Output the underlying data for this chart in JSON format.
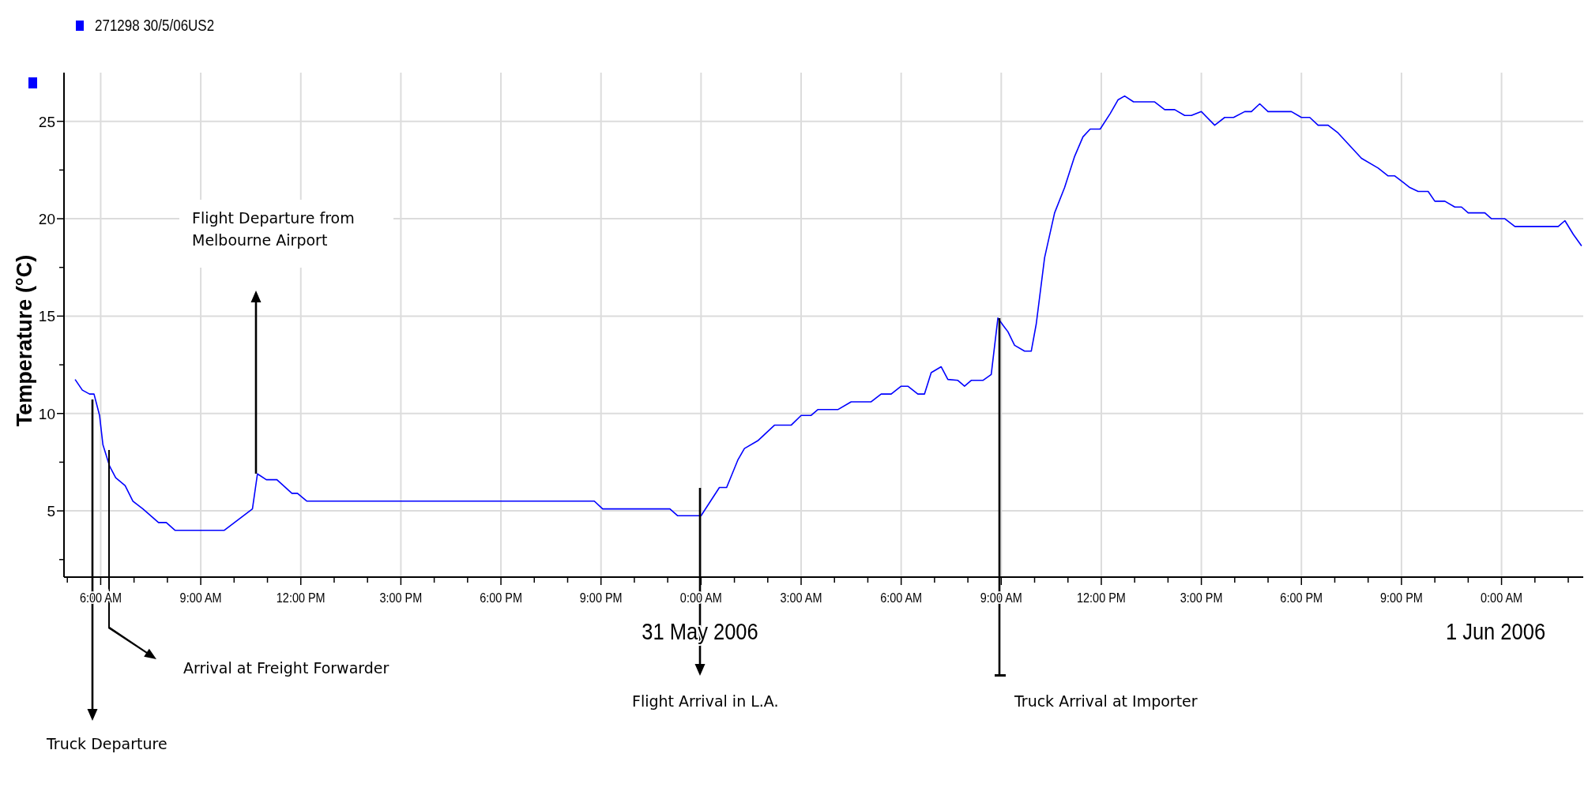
{
  "chart_data": {
    "type": "line",
    "ylabel": "Temperature (°C)",
    "legend": "top left",
    "grid": true,
    "xlim": [
      "2006-05-30T04:54",
      "2006-06-01T02:27"
    ],
    "ylim": [
      1.6,
      27.5
    ],
    "xticks": [
      {
        "value": "2006-05-30T05:00",
        "label": null
      },
      {
        "value": "2006-05-30T06:00",
        "label": "6:00 AM"
      },
      {
        "value": "2006-05-30T07:00",
        "label": null
      },
      {
        "value": "2006-05-30T08:00",
        "label": null
      },
      {
        "value": "2006-05-30T09:00",
        "label": "9:00 AM"
      },
      {
        "value": "2006-05-30T10:00",
        "label": null
      },
      {
        "value": "2006-05-30T11:00",
        "label": null
      },
      {
        "value": "2006-05-30T12:00",
        "label": "12:00 PM"
      },
      {
        "value": "2006-05-30T13:00",
        "label": null
      },
      {
        "value": "2006-05-30T14:00",
        "label": null
      },
      {
        "value": "2006-05-30T15:00",
        "label": "3:00 PM"
      },
      {
        "value": "2006-05-30T16:00",
        "label": null
      },
      {
        "value": "2006-05-30T17:00",
        "label": null
      },
      {
        "value": "2006-05-30T18:00",
        "label": "6:00 PM"
      },
      {
        "value": "2006-05-30T19:00",
        "label": null
      },
      {
        "value": "2006-05-30T20:00",
        "label": null
      },
      {
        "value": "2006-05-30T21:00",
        "label": "9:00 PM"
      },
      {
        "value": "2006-05-30T22:00",
        "label": null
      },
      {
        "value": "2006-05-30T23:00",
        "label": null
      },
      {
        "value": "2006-05-31T00:00",
        "label": "0:00 AM"
      },
      {
        "value": "2006-05-31T01:00",
        "label": null
      },
      {
        "value": "2006-05-31T02:00",
        "label": null
      },
      {
        "value": "2006-05-31T03:00",
        "label": "3:00 AM"
      },
      {
        "value": "2006-05-31T04:00",
        "label": null
      },
      {
        "value": "2006-05-31T05:00",
        "label": null
      },
      {
        "value": "2006-05-31T06:00",
        "label": "6:00 AM"
      },
      {
        "value": "2006-05-31T07:00",
        "label": null
      },
      {
        "value": "2006-05-31T08:00",
        "label": null
      },
      {
        "value": "2006-05-31T09:00",
        "label": "9:00 AM"
      },
      {
        "value": "2006-05-31T10:00",
        "label": null
      },
      {
        "value": "2006-05-31T11:00",
        "label": null
      },
      {
        "value": "2006-05-31T12:00",
        "label": "12:00 PM"
      },
      {
        "value": "2006-05-31T13:00",
        "label": null
      },
      {
        "value": "2006-05-31T14:00",
        "label": null
      },
      {
        "value": "2006-05-31T15:00",
        "label": "3:00 PM"
      },
      {
        "value": "2006-05-31T16:00",
        "label": null
      },
      {
        "value": "2006-05-31T17:00",
        "label": null
      },
      {
        "value": "2006-05-31T18:00",
        "label": "6:00 PM"
      },
      {
        "value": "2006-05-31T19:00",
        "label": null
      },
      {
        "value": "2006-05-31T20:00",
        "label": null
      },
      {
        "value": "2006-05-31T21:00",
        "label": "9:00 PM"
      },
      {
        "value": "2006-05-31T22:00",
        "label": null
      },
      {
        "value": "2006-05-31T23:00",
        "label": null
      },
      {
        "value": "2006-06-01T00:00",
        "label": "0:00 AM"
      },
      {
        "value": "2006-06-01T01:00",
        "label": null
      },
      {
        "value": "2006-06-01T02:00",
        "label": null
      }
    ],
    "yticks": [
      {
        "value": 2.5,
        "label": null
      },
      5,
      {
        "value": 7.5,
        "label": null
      },
      10,
      {
        "value": 12.5,
        "label": null
      },
      15,
      {
        "value": 17.5,
        "label": null
      },
      20,
      {
        "value": 22.5,
        "label": null
      },
      25
    ],
    "series": [
      {
        "name": "271298 30/5/06US2",
        "color": "#0000ff",
        "x": [
          "2006-05-30T05:14",
          "2006-05-30T05:27",
          "2006-05-30T05:40",
          "2006-05-30T05:48",
          "2006-05-30T05:58",
          "2006-05-30T06:04",
          "2006-05-30T06:16",
          "2006-05-30T06:27",
          "2006-05-30T06:44",
          "2006-05-30T06:58",
          "2006-05-30T07:16",
          "2006-05-30T07:44",
          "2006-05-30T07:58",
          "2006-05-30T08:14",
          "2006-05-30T09:42",
          "2006-05-30T10:33",
          "2006-05-30T10:42",
          "2006-05-30T10:58",
          "2006-05-30T11:17",
          "2006-05-30T11:44",
          "2006-05-30T11:54",
          "2006-05-30T12:11",
          "2006-05-30T20:48",
          "2006-05-30T21:03",
          "2006-05-30T23:04",
          "2006-05-30T23:18",
          "2006-05-31T00:00",
          "2006-05-31T00:33",
          "2006-05-31T00:46",
          "2006-05-31T01:06",
          "2006-05-31T01:18",
          "2006-05-31T01:42",
          "2006-05-31T02:12",
          "2006-05-31T02:42",
          "2006-05-31T03:00",
          "2006-05-31T03:18",
          "2006-05-31T03:30",
          "2006-05-31T04:06",
          "2006-05-31T04:30",
          "2006-05-31T05:06",
          "2006-05-31T05:24",
          "2006-05-31T05:42",
          "2006-05-31T06:00",
          "2006-05-31T06:12",
          "2006-05-31T06:30",
          "2006-05-31T06:42",
          "2006-05-31T06:54",
          "2006-05-31T07:12",
          "2006-05-31T07:24",
          "2006-05-31T07:42",
          "2006-05-31T07:54",
          "2006-05-31T08:06",
          "2006-05-31T08:27",
          "2006-05-31T08:42",
          "2006-05-31T08:54",
          "2006-05-31T09:04",
          "2006-05-31T09:12",
          "2006-05-31T09:24",
          "2006-05-31T09:42",
          "2006-05-31T09:54",
          "2006-05-31T10:03",
          "2006-05-31T10:18",
          "2006-05-31T10:36",
          "2006-05-31T10:54",
          "2006-05-31T11:12",
          "2006-05-31T11:27",
          "2006-05-31T11:40",
          "2006-05-31T11:58",
          "2006-05-31T12:16",
          "2006-05-31T12:30",
          "2006-05-31T12:42",
          "2006-05-31T12:58",
          "2006-05-31T13:36",
          "2006-05-31T13:54",
          "2006-05-31T14:12",
          "2006-05-31T14:30",
          "2006-05-31T14:42",
          "2006-05-31T15:00",
          "2006-05-31T15:24",
          "2006-05-31T15:42",
          "2006-05-31T15:58",
          "2006-05-31T16:18",
          "2006-05-31T16:30",
          "2006-05-31T16:45",
          "2006-05-31T17:00",
          "2006-05-31T17:42",
          "2006-05-31T18:00",
          "2006-05-31T18:15",
          "2006-05-31T18:30",
          "2006-05-31T18:48",
          "2006-05-31T19:06",
          "2006-05-31T19:48",
          "2006-05-31T20:18",
          "2006-05-31T20:36",
          "2006-05-31T20:48",
          "2006-05-31T21:15",
          "2006-05-31T21:30",
          "2006-05-31T21:48",
          "2006-05-31T22:00",
          "2006-05-31T22:18",
          "2006-05-31T22:36",
          "2006-05-31T22:48",
          "2006-05-31T23:00",
          "2006-05-31T23:30",
          "2006-05-31T23:42",
          "2006-06-01T00:06",
          "2006-06-01T00:24",
          "2006-06-01T01:42",
          "2006-06-01T01:54",
          "2006-06-01T02:09",
          "2006-06-01T02:24"
        ],
        "values": [
          11.75,
          11.2,
          11.0,
          11.0,
          9.9,
          8.4,
          7.3,
          6.7,
          6.3,
          5.5,
          5.1,
          4.4,
          4.4,
          4.0,
          4.0,
          5.1,
          6.9,
          6.6,
          6.6,
          5.9,
          5.9,
          5.5,
          5.5,
          5.1,
          5.1,
          4.75,
          4.75,
          6.2,
          6.2,
          7.6,
          8.2,
          8.6,
          9.4,
          9.4,
          9.9,
          9.9,
          10.2,
          10.2,
          10.6,
          10.6,
          11.0,
          11.0,
          11.4,
          11.4,
          11.0,
          11.0,
          12.1,
          12.4,
          11.75,
          11.7,
          11.4,
          11.7,
          11.7,
          12.0,
          14.9,
          14.5,
          14.2,
          13.5,
          13.2,
          13.2,
          14.6,
          18.0,
          20.3,
          21.6,
          23.2,
          24.2,
          24.6,
          24.6,
          25.4,
          26.1,
          26.3,
          26.0,
          26.0,
          25.6,
          25.6,
          25.3,
          25.3,
          25.5,
          24.8,
          25.2,
          25.2,
          25.5,
          25.5,
          25.9,
          25.5,
          25.5,
          25.2,
          25.2,
          24.8,
          24.8,
          24.4,
          23.1,
          22.6,
          22.2,
          22.2,
          21.6,
          21.4,
          21.4,
          20.9,
          20.9,
          20.6,
          20.6,
          20.3,
          20.3,
          20.0,
          20.0,
          19.6,
          19.6,
          19.9,
          19.2,
          18.6
        ]
      }
    ],
    "annotations": [
      "Flight Departure from Melbourne Airport",
      "Arrival at Freight Forwarder",
      "Truck Departure",
      "Flight Arrival in L.A.",
      "Truck Arrival at Importer",
      "31 May 2006",
      "1 Jun 2006"
    ]
  }
}
